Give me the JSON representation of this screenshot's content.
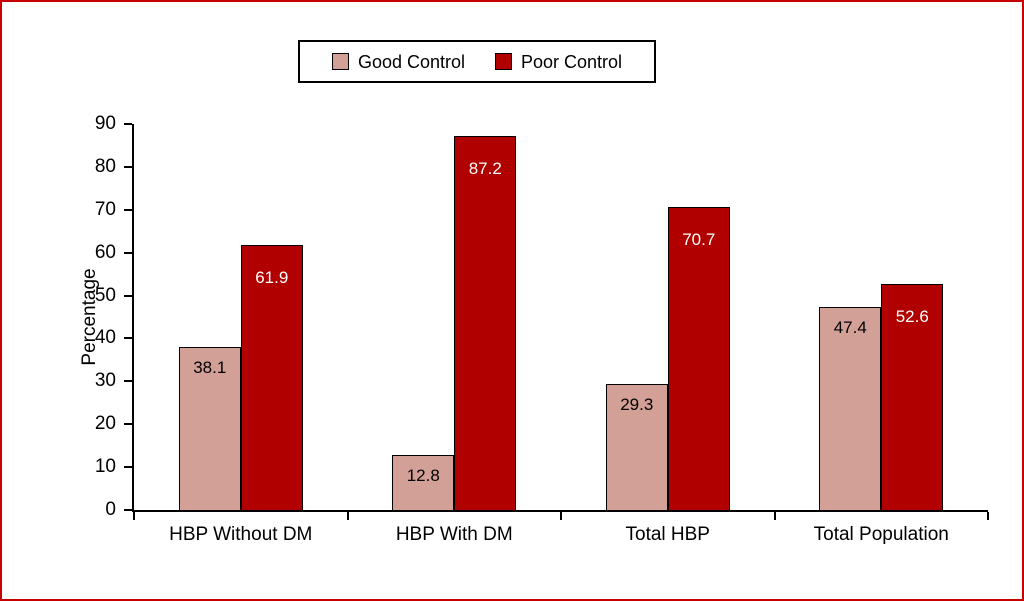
{
  "frame": {
    "border_color": "#c80000",
    "background": "#ffffff"
  },
  "chart_data": {
    "type": "bar",
    "title": "",
    "categories": [
      "HBP Without DM",
      "HBP With DM",
      "Total HBP",
      "Total Population"
    ],
    "series": [
      {
        "name": "Good Control",
        "color": "#d2a096",
        "label_color": "#000000",
        "label_offset": 10,
        "values": [
          38.1,
          12.8,
          29.3,
          47.4
        ]
      },
      {
        "name": "Poor Control",
        "color": "#b00000",
        "label_color": "#ffffff",
        "label_offset": 22,
        "values": [
          61.9,
          87.2,
          70.7,
          52.6
        ]
      }
    ],
    "ylabel": "Percentage",
    "xlabel": "",
    "ylim": [
      0,
      90
    ],
    "yticks": [
      0,
      10,
      20,
      30,
      40,
      50,
      60,
      70,
      80,
      90
    ],
    "xtick_boundaries_pct": [
      0,
      25,
      50,
      75,
      100
    ],
    "grid": false,
    "legend_position": "top"
  }
}
